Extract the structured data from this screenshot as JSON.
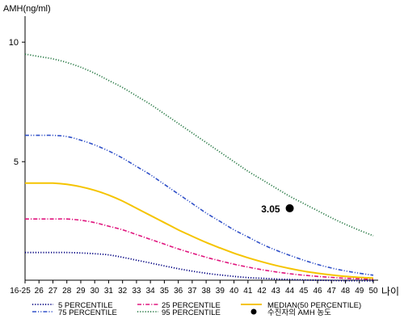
{
  "chart_data": {
    "type": "line",
    "ylabel": "AMH(ng/ml)",
    "xlabel": "나이",
    "ylim": [
      0,
      11
    ],
    "yticks": [
      5,
      10
    ],
    "categories": [
      "16-25",
      "26",
      "27",
      "28",
      "29",
      "30",
      "31",
      "32",
      "33",
      "34",
      "35",
      "36",
      "37",
      "38",
      "39",
      "40",
      "41",
      "42",
      "43",
      "44",
      "45",
      "46",
      "47",
      "48",
      "49",
      "50"
    ],
    "series": [
      {
        "name": "5 PERCENTILE",
        "color": "#000080",
        "style": "dotted",
        "values": [
          1.2,
          1.2,
          1.2,
          1.2,
          1.18,
          1.15,
          1.1,
          1.0,
          0.88,
          0.76,
          0.64,
          0.52,
          0.42,
          0.33,
          0.26,
          0.2,
          0.15,
          0.12,
          0.09,
          0.07,
          0.05,
          0.04,
          0.03,
          0.02,
          0.02,
          0.01
        ]
      },
      {
        "name": "25 PERCENTILE",
        "color": "#e0157e",
        "style": "dashdot",
        "values": [
          2.6,
          2.6,
          2.6,
          2.6,
          2.55,
          2.45,
          2.3,
          2.15,
          1.95,
          1.75,
          1.55,
          1.35,
          1.17,
          1.0,
          0.85,
          0.71,
          0.59,
          0.48,
          0.39,
          0.31,
          0.25,
          0.2,
          0.16,
          0.12,
          0.1,
          0.08
        ]
      },
      {
        "name": "MEDIAN(50 PERCENTILE)",
        "color": "#f5c400",
        "style": "solid",
        "values": [
          4.1,
          4.1,
          4.1,
          4.05,
          3.95,
          3.8,
          3.6,
          3.35,
          3.05,
          2.75,
          2.45,
          2.15,
          1.88,
          1.62,
          1.39,
          1.17,
          0.98,
          0.81,
          0.66,
          0.53,
          0.42,
          0.33,
          0.26,
          0.2,
          0.16,
          0.13
        ]
      },
      {
        "name": "75 PERCENTILE",
        "color": "#3050c8",
        "style": "dashdotdot",
        "values": [
          6.1,
          6.1,
          6.1,
          6.05,
          5.9,
          5.7,
          5.45,
          5.15,
          4.8,
          4.45,
          4.05,
          3.65,
          3.25,
          2.85,
          2.5,
          2.15,
          1.85,
          1.55,
          1.3,
          1.08,
          0.88,
          0.7,
          0.55,
          0.43,
          0.33,
          0.25
        ]
      },
      {
        "name": "95 PERCENTILE",
        "color": "#2e7d4a",
        "style": "dotted",
        "values": [
          9.5,
          9.4,
          9.3,
          9.15,
          8.95,
          8.7,
          8.4,
          8.1,
          7.75,
          7.4,
          7.0,
          6.6,
          6.2,
          5.8,
          5.4,
          5.0,
          4.6,
          4.25,
          3.9,
          3.55,
          3.25,
          2.95,
          2.65,
          2.38,
          2.13,
          1.9
        ]
      }
    ],
    "point": {
      "x": "44",
      "y": 3.05,
      "label": "3.05",
      "legend": "수진자의 AMH 농도",
      "color": "#000000"
    },
    "grid": false,
    "legend_position": "bottom"
  }
}
